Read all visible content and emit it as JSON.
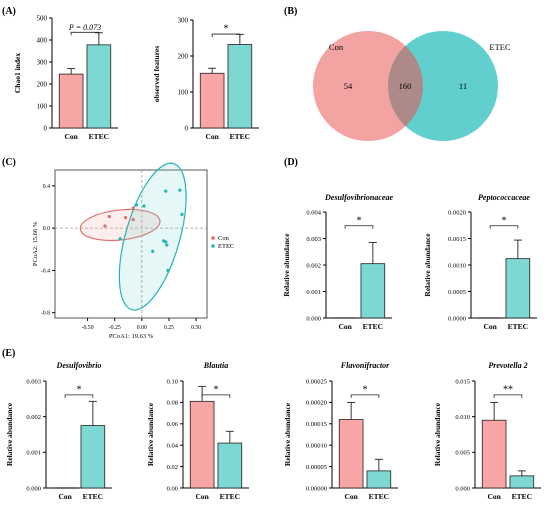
{
  "panel_labels": {
    "a": "(A)",
    "b": "(B)",
    "c": "(C)",
    "d": "(D)",
    "e": "(E)"
  },
  "colors": {
    "con": "#f7a5a5",
    "etec": "#7dd8d4",
    "con_venn": "#f4a3a3",
    "etec_venn": "#62cfcf",
    "overlap_venn": "#ad8a88"
  },
  "chart_data": [
    {
      "id": "chao1",
      "type": "bar",
      "categories": [
        "Con",
        "ETEC"
      ],
      "values": [
        245,
        378
      ],
      "errors": [
        25,
        55
      ],
      "ylabel": "Chao1 index",
      "ylim": [
        0,
        500
      ],
      "ticks": [
        "0",
        "100",
        "200",
        "300",
        "400",
        "500"
      ],
      "significance": "P = 0.073"
    },
    {
      "id": "observed",
      "type": "bar",
      "categories": [
        "Con",
        "ETEC"
      ],
      "values": [
        152,
        232
      ],
      "errors": [
        14,
        28
      ],
      "ylabel": "observed features",
      "ylim": [
        0,
        300
      ],
      "ticks": [
        "0",
        "100",
        "200",
        "300"
      ],
      "significance": "*"
    },
    {
      "id": "venn",
      "type": "venn",
      "sets": [
        "Con",
        "ETEC"
      ],
      "only_a": "54",
      "both": "160",
      "only_b": "11"
    },
    {
      "id": "pcoa",
      "type": "scatter",
      "xlabel": "PCoA1: 19.63 %",
      "ylabel": "PCoA2: 15.66 %",
      "xlim": [
        -0.8,
        0.6
      ],
      "ylim": [
        -0.85,
        0.55
      ],
      "xticks": [
        -0.5,
        -0.25,
        0,
        0.25,
        0.5
      ],
      "xtick_labels": [
        "-0.50",
        "-0.25",
        "0.00",
        "0.25",
        "0.50"
      ],
      "yticks": [
        0.4,
        0,
        -0.4,
        -0.8
      ],
      "ytick_labels": [
        "0.4",
        "0.0",
        "-0.4",
        "-0.8"
      ],
      "legend": [
        "Con",
        "ETEC"
      ],
      "legend_position": "right",
      "series": [
        {
          "name": "Con",
          "points": [
            [
              -0.34,
              0.02
            ],
            [
              -0.3,
              0.11
            ],
            [
              -0.15,
              0.1
            ],
            [
              -0.08,
              0.08
            ],
            [
              -0.08,
              0.19
            ]
          ]
        },
        {
          "name": "ETEC",
          "points": [
            [
              -0.2,
              -0.1
            ],
            [
              0.22,
              0.35
            ],
            [
              0.35,
              0.36
            ],
            [
              0.37,
              0.13
            ],
            [
              0.2,
              -0.12
            ],
            [
              0.22,
              -0.13
            ],
            [
              0.23,
              -0.16
            ],
            [
              0.24,
              -0.4
            ],
            [
              0.1,
              -0.22
            ],
            [
              0.02,
              0.21
            ],
            [
              -0.05,
              0.22
            ]
          ]
        }
      ]
    },
    {
      "id": "desulfovibrionaceae",
      "type": "bar",
      "title": "Desulfovibrionaceae",
      "ylabel": "Relative abundance",
      "categories": [
        "Con",
        "ETEC"
      ],
      "values": [
        0,
        0.00205
      ],
      "errors": [
        0,
        0.0008
      ],
      "ylim": [
        0,
        0.004
      ],
      "ticks": [
        "0.000",
        "0.001",
        "0.002",
        "0.003",
        "0.004"
      ],
      "significance": "*"
    },
    {
      "id": "peptococcaceae",
      "type": "bar",
      "title": "Peptococcaceae",
      "ylabel": "Relative abundance",
      "categories": [
        "Con",
        "ETEC"
      ],
      "values": [
        0,
        0.00112
      ],
      "errors": [
        0,
        0.00035
      ],
      "ylim": [
        0,
        0.002
      ],
      "ticks": [
        "0.0000",
        "0.0005",
        "0.0010",
        "0.0015",
        "0.0020"
      ],
      "significance": "*"
    },
    {
      "id": "desulfovibrio",
      "type": "bar",
      "title": "Desulfovibrio",
      "ylabel": "Relative abundance",
      "categories": [
        "Con",
        "ETEC"
      ],
      "values": [
        0,
        0.00175
      ],
      "errors": [
        0,
        0.00068
      ],
      "ylim": [
        0,
        0.003
      ],
      "ticks": [
        "0.000",
        "0.001",
        "0.002",
        "0.003"
      ],
      "significance": "*"
    },
    {
      "id": "blautia",
      "type": "bar",
      "title": "Blautia",
      "ylabel": "Relative abundance",
      "categories": [
        "Con",
        "ETEC"
      ],
      "values": [
        0.081,
        0.042
      ],
      "errors": [
        0.014,
        0.011
      ],
      "ylim": [
        0,
        0.1
      ],
      "ticks": [
        "0.00",
        "0.02",
        "0.04",
        "0.06",
        "0.08",
        "0.10"
      ],
      "significance": "*"
    },
    {
      "id": "flavonifractor",
      "type": "bar",
      "title": "Flavonifractor",
      "ylabel": "Relative abundance",
      "categories": [
        "Con",
        "ETEC"
      ],
      "values": [
        0.00016,
        4e-05
      ],
      "errors": [
        4e-05,
        2.7e-05
      ],
      "ylim": [
        0,
        0.00025
      ],
      "ticks": [
        "0.00000",
        "0.00005",
        "0.00010",
        "0.00015",
        "0.00020",
        "0.00025"
      ],
      "significance": "*"
    },
    {
      "id": "prevotella2",
      "type": "bar",
      "title": "Prevotella 2",
      "ylabel": "Relative abundance",
      "categories": [
        "Con",
        "ETEC"
      ],
      "values": [
        0.0095,
        0.0017
      ],
      "errors": [
        0.0025,
        0.0007
      ],
      "ylim": [
        0,
        0.015
      ],
      "ticks": [
        "0.000",
        "0.005",
        "0.010",
        "0.015"
      ],
      "significance": "**"
    }
  ]
}
